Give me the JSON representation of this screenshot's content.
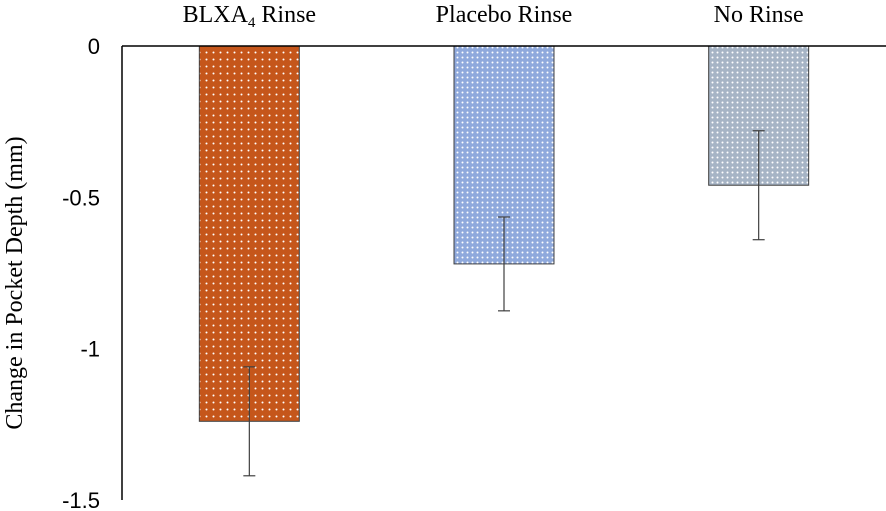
{
  "chart_data": {
    "type": "bar",
    "title": "",
    "xlabel": "",
    "ylabel": "Change in Pocket Depth (mm)",
    "categories": [
      {
        "label": "BLXA",
        "subscript": "4",
        "suffix": " Rinse"
      },
      {
        "label": "Placebo Rinse",
        "subscript": "",
        "suffix": ""
      },
      {
        "label": "No Rinse",
        "subscript": "",
        "suffix": ""
      }
    ],
    "values": [
      -1.24,
      -0.72,
      -0.46
    ],
    "error": [
      0.18,
      0.155,
      0.18
    ],
    "ylim": [
      -1.5,
      0
    ],
    "yticks": [
      0,
      -0.5,
      -1,
      -1.5
    ],
    "ytick_labels": [
      "0",
      "-0.5",
      "-1",
      "-1.5"
    ],
    "x_axis_position": "top",
    "bar_colors": [
      "#c5561b",
      "#8fa9dc",
      "#a6b4c5"
    ],
    "bar_pattern": "dotted",
    "grid": false,
    "legend": "none"
  }
}
